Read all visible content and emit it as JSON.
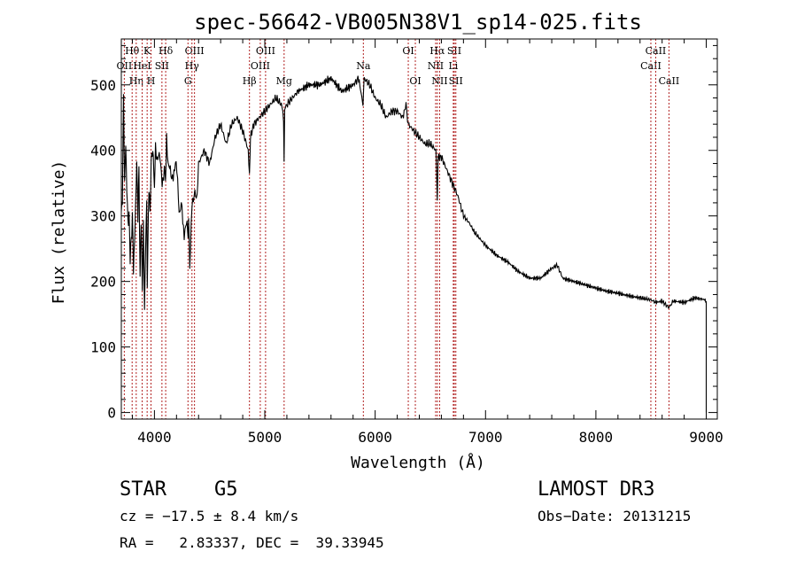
{
  "chart_data": {
    "type": "line",
    "title": "spec-56642-VB005N38V1_sp14-025.fits",
    "xlabel": "Wavelength (Å)",
    "ylabel": "Flux (relative)",
    "xlim": [
      3700,
      9100
    ],
    "ylim": [
      -10,
      570
    ],
    "xticks": [
      4000,
      5000,
      6000,
      7000,
      8000,
      9000
    ],
    "xtick_labels": [
      "4000",
      "5000",
      "6000",
      "7000",
      "8000",
      "9000"
    ],
    "yticks": [
      0,
      100,
      200,
      300,
      400,
      500
    ],
    "ytick_labels": [
      "0",
      "100",
      "200",
      "300",
      "400",
      "500"
    ],
    "grid": false,
    "series": [
      {
        "name": "spectrum",
        "x": [
          3700,
          3710,
          3720,
          3730,
          3740,
          3750,
          3760,
          3770,
          3780,
          3790,
          3800,
          3810,
          3820,
          3830,
          3840,
          3850,
          3860,
          3870,
          3880,
          3890,
          3900,
          3910,
          3920,
          3930,
          3935,
          3940,
          3950,
          3960,
          3970,
          3980,
          3990,
          4000,
          4010,
          4030,
          4050,
          4070,
          4090,
          4100,
          4110,
          4130,
          4150,
          4170,
          4190,
          4210,
          4230,
          4250,
          4270,
          4290,
          4300,
          4310,
          4320,
          4340,
          4360,
          4380,
          4400,
          4450,
          4500,
          4550,
          4600,
          4650,
          4700,
          4750,
          4800,
          4850,
          4861,
          4870,
          4900,
          4950,
          5000,
          5050,
          5100,
          5150,
          5170,
          5175,
          5180,
          5200,
          5250,
          5300,
          5400,
          5500,
          5600,
          5700,
          5800,
          5850,
          5890,
          5896,
          5900,
          5950,
          6000,
          6050,
          6100,
          6150,
          6200,
          6250,
          6280,
          6300,
          6350,
          6400,
          6450,
          6500,
          6550,
          6563,
          6570,
          6600,
          6650,
          6700,
          6750,
          6800,
          6850,
          6900,
          6950,
          7000,
          7100,
          7200,
          7300,
          7400,
          7500,
          7600,
          7650,
          7700,
          7800,
          7900,
          8000,
          8100,
          8200,
          8300,
          8400,
          8498,
          8542,
          8600,
          8662,
          8700,
          8800,
          8900,
          8990,
          9000
        ],
        "y": [
          300,
          330,
          480,
          350,
          410,
          340,
          290,
          300,
          240,
          260,
          300,
          220,
          260,
          320,
          380,
          300,
          370,
          200,
          300,
          180,
          290,
          160,
          250,
          320,
          200,
          240,
          350,
          300,
          380,
          400,
          390,
          340,
          410,
          380,
          400,
          340,
          380,
          350,
          420,
          370,
          370,
          350,
          390,
          350,
          300,
          320,
          260,
          300,
          270,
          290,
          230,
          310,
          340,
          320,
          380,
          400,
          380,
          420,
          440,
          410,
          440,
          450,
          430,
          400,
          360,
          420,
          440,
          450,
          460,
          470,
          480,
          470,
          450,
          380,
          460,
          470,
          480,
          490,
          500,
          500,
          510,
          490,
          500,
          510,
          470,
          490,
          510,
          500,
          480,
          470,
          450,
          460,
          460,
          450,
          470,
          440,
          430,
          420,
          410,
          410,
          400,
          330,
          390,
          390,
          370,
          350,
          330,
          300,
          290,
          275,
          265,
          255,
          240,
          230,
          215,
          205,
          205,
          220,
          225,
          205,
          200,
          195,
          190,
          185,
          182,
          178,
          175,
          172,
          168,
          170,
          160,
          170,
          168,
          175,
          172,
          170
        ]
      }
    ],
    "line_marks": [
      {
        "name": "H-theta",
        "label": "Hθ",
        "x": 3798,
        "row": 0
      },
      {
        "name": "O-II",
        "label": "OII",
        "x": 3727,
        "row": 1
      },
      {
        "name": "H-eta",
        "label": "Hη",
        "x": 3835,
        "row": 2
      },
      {
        "name": "Ca-II-K",
        "label": "K",
        "x": 3934,
        "row": 0
      },
      {
        "name": "Ca-II-H",
        "label": "H",
        "x": 3969,
        "row": 2
      },
      {
        "name": "He-I",
        "label": "HeI",
        "x": 3889,
        "row": 1
      },
      {
        "name": "S-II-4068",
        "label": "SII",
        "x": 4068,
        "row": 1
      },
      {
        "name": "H-delta",
        "label": "Hδ",
        "x": 4102,
        "row": 0
      },
      {
        "name": "O-III-4363",
        "label": "OIII",
        "x": 4363,
        "row": 0
      },
      {
        "name": "H-gamma",
        "label": "Hγ",
        "x": 4340,
        "row": 1
      },
      {
        "name": "G-band",
        "label": "G",
        "x": 4304,
        "row": 2
      },
      {
        "name": "H-beta",
        "label": "Hβ",
        "x": 4861,
        "row": 2
      },
      {
        "name": "O-III-4959",
        "label": "OIII",
        "x": 4959,
        "row": 1
      },
      {
        "name": "O-III-5007",
        "label": "OIII",
        "x": 5007,
        "row": 0
      },
      {
        "name": "Mg",
        "label": "Mg",
        "x": 5175,
        "row": 2
      },
      {
        "name": "Na",
        "label": "Na",
        "x": 5893,
        "row": 1
      },
      {
        "name": "O-I-6300",
        "label": "OI",
        "x": 6300,
        "row": 0
      },
      {
        "name": "O-I-6364",
        "label": "OI",
        "x": 6364,
        "row": 2
      },
      {
        "name": "N-II-6548",
        "label": "NII",
        "x": 6548,
        "row": 1
      },
      {
        "name": "H-alpha",
        "label": "Hα",
        "x": 6563,
        "row": 0
      },
      {
        "name": "N-II-6584",
        "label": "NII",
        "x": 6584,
        "row": 2
      },
      {
        "name": "S-II-6717",
        "label": "SII",
        "x": 6717,
        "row": 0
      },
      {
        "name": "S-II-6731",
        "label": "SII",
        "x": 6731,
        "row": 2
      },
      {
        "name": "Li",
        "label": "Li",
        "x": 6708,
        "row": 1
      },
      {
        "name": "Ca-II-8498",
        "label": "CaII",
        "x": 8498,
        "row": 1
      },
      {
        "name": "Ca-II-8542",
        "label": "CaII",
        "x": 8542,
        "row": 0
      },
      {
        "name": "Ca-II-8662",
        "label": "CaII",
        "x": 8662,
        "row": 2
      }
    ]
  },
  "info": {
    "object_class": "STAR",
    "subclass": "G5",
    "survey": "LAMOST DR3",
    "cz": "cz = −17.5 ± 8.4 km/s",
    "obs_date": "Obs−Date: 20131215",
    "coords": "RA =   2.83337, DEC =  39.33945"
  }
}
